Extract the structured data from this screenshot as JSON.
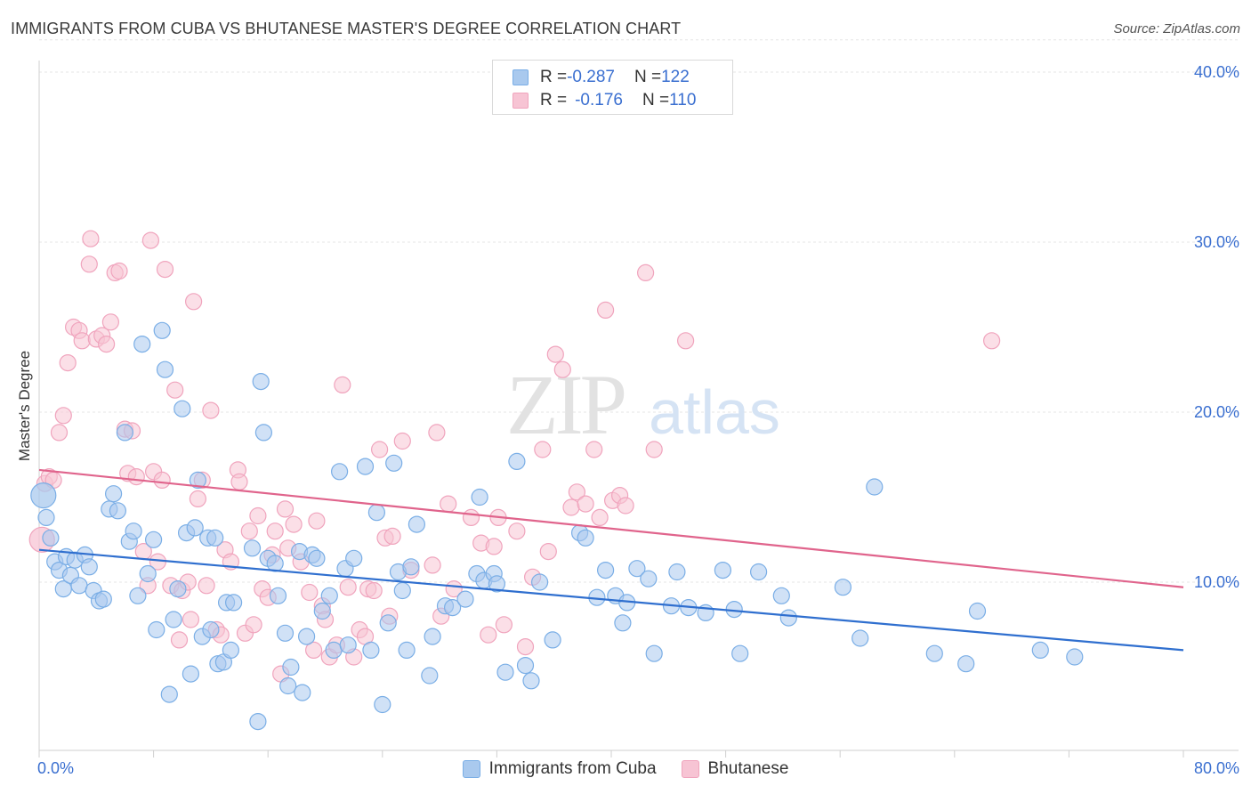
{
  "title": "IMMIGRANTS FROM CUBA VS BHUTANESE MASTER'S DEGREE CORRELATION CHART",
  "source": "Source: ZipAtlas.com",
  "watermark": {
    "zip": "ZIP",
    "atlas": "atlas"
  },
  "legend_stats": [
    {
      "r_label": "R = ",
      "r_value": "-0.287",
      "n_label": "N = ",
      "n_value": "122"
    },
    {
      "r_label": "R = ",
      "r_value": "-0.176",
      "n_label": "N = ",
      "n_value": "110"
    }
  ],
  "chart_data": {
    "type": "scatter",
    "title": "IMMIGRANTS FROM CUBA VS BHUTANESE MASTER'S DEGREE CORRELATION CHART",
    "xlabel": "",
    "ylabel": "Master's Degree",
    "xlim": [
      0,
      80
    ],
    "ylim": [
      0,
      42
    ],
    "x_tick_labels": [
      "0.0%",
      "80.0%"
    ],
    "y_ticks": [
      10,
      20,
      30,
      40
    ],
    "y_tick_labels": [
      "10.0%",
      "20.0%",
      "30.0%",
      "40.0%"
    ],
    "grid": true,
    "legend_position": "bottom",
    "series": [
      {
        "name": "Immigrants from Cuba",
        "color": "#7aaee6",
        "fill": "#a9c9ee",
        "line_color": "#2f6fcf",
        "trend": {
          "x": [
            0,
            80
          ],
          "y": [
            11.9,
            6.0
          ]
        },
        "points": [
          [
            0.3,
            15.1
          ],
          [
            0.5,
            13.8
          ],
          [
            0.8,
            12.6
          ],
          [
            1.1,
            11.2
          ],
          [
            1.4,
            10.7
          ],
          [
            1.7,
            9.6
          ],
          [
            1.9,
            11.5
          ],
          [
            2.2,
            10.4
          ],
          [
            2.5,
            11.3
          ],
          [
            2.8,
            9.8
          ],
          [
            3.2,
            11.6
          ],
          [
            3.5,
            10.9
          ],
          [
            3.8,
            9.5
          ],
          [
            4.2,
            8.9
          ],
          [
            4.5,
            9.0
          ],
          [
            4.9,
            14.3
          ],
          [
            5.2,
            15.2
          ],
          [
            5.5,
            14.2
          ],
          [
            6.0,
            18.8
          ],
          [
            6.3,
            12.4
          ],
          [
            6.6,
            13.0
          ],
          [
            6.9,
            9.2
          ],
          [
            7.2,
            24.0
          ],
          [
            7.6,
            10.5
          ],
          [
            8.0,
            12.5
          ],
          [
            8.2,
            7.2
          ],
          [
            8.6,
            24.8
          ],
          [
            8.8,
            22.5
          ],
          [
            9.1,
            3.4
          ],
          [
            9.4,
            7.8
          ],
          [
            9.7,
            9.6
          ],
          [
            10.0,
            20.2
          ],
          [
            10.3,
            12.9
          ],
          [
            10.6,
            4.6
          ],
          [
            10.9,
            13.2
          ],
          [
            11.1,
            16.0
          ],
          [
            11.4,
            6.8
          ],
          [
            11.8,
            12.6
          ],
          [
            12.0,
            7.2
          ],
          [
            12.3,
            12.6
          ],
          [
            12.5,
            5.2
          ],
          [
            12.9,
            5.3
          ],
          [
            13.1,
            8.8
          ],
          [
            13.4,
            6.0
          ],
          [
            13.6,
            8.8
          ],
          [
            14.9,
            12.0
          ],
          [
            15.3,
            1.8
          ],
          [
            15.5,
            21.8
          ],
          [
            15.7,
            18.8
          ],
          [
            16.0,
            11.4
          ],
          [
            16.5,
            11.1
          ],
          [
            16.7,
            9.2
          ],
          [
            17.2,
            7.0
          ],
          [
            17.4,
            3.9
          ],
          [
            17.6,
            5.0
          ],
          [
            18.2,
            11.8
          ],
          [
            18.4,
            3.5
          ],
          [
            18.7,
            6.8
          ],
          [
            19.1,
            11.6
          ],
          [
            19.4,
            11.4
          ],
          [
            19.8,
            8.3
          ],
          [
            20.3,
            9.2
          ],
          [
            20.6,
            6.0
          ],
          [
            21.0,
            16.5
          ],
          [
            21.4,
            10.8
          ],
          [
            21.6,
            6.3
          ],
          [
            22.0,
            11.4
          ],
          [
            22.8,
            16.8
          ],
          [
            23.2,
            6.0
          ],
          [
            23.6,
            14.1
          ],
          [
            24.0,
            2.8
          ],
          [
            24.4,
            7.6
          ],
          [
            24.8,
            17.0
          ],
          [
            25.1,
            10.6
          ],
          [
            25.4,
            9.5
          ],
          [
            25.7,
            6.0
          ],
          [
            26.0,
            10.9
          ],
          [
            26.4,
            13.4
          ],
          [
            27.3,
            4.5
          ],
          [
            27.5,
            6.8
          ],
          [
            28.4,
            8.6
          ],
          [
            28.9,
            8.5
          ],
          [
            29.8,
            9.0
          ],
          [
            30.6,
            10.5
          ],
          [
            30.8,
            15.0
          ],
          [
            31.1,
            10.1
          ],
          [
            31.8,
            10.5
          ],
          [
            32.0,
            9.9
          ],
          [
            32.6,
            4.7
          ],
          [
            33.4,
            17.1
          ],
          [
            34.0,
            5.1
          ],
          [
            34.4,
            4.2
          ],
          [
            35.0,
            10.0
          ],
          [
            35.9,
            6.6
          ],
          [
            37.8,
            12.9
          ],
          [
            38.2,
            12.6
          ],
          [
            39.0,
            9.1
          ],
          [
            39.6,
            10.7
          ],
          [
            40.3,
            9.2
          ],
          [
            40.8,
            7.6
          ],
          [
            41.1,
            8.8
          ],
          [
            41.8,
            10.8
          ],
          [
            42.6,
            10.2
          ],
          [
            43.0,
            5.8
          ],
          [
            44.2,
            8.6
          ],
          [
            44.6,
            10.6
          ],
          [
            45.4,
            8.5
          ],
          [
            46.6,
            8.2
          ],
          [
            47.8,
            10.7
          ],
          [
            48.6,
            8.4
          ],
          [
            49.0,
            5.8
          ],
          [
            50.3,
            10.6
          ],
          [
            51.9,
            9.2
          ],
          [
            52.4,
            7.9
          ],
          [
            56.2,
            9.7
          ],
          [
            57.4,
            6.7
          ],
          [
            58.4,
            15.6
          ],
          [
            62.6,
            5.8
          ],
          [
            64.8,
            5.2
          ],
          [
            65.6,
            8.3
          ],
          [
            70.0,
            6.0
          ],
          [
            72.4,
            5.6
          ]
        ]
      },
      {
        "name": "Bhutanese",
        "color": "#f0a4bd",
        "fill": "#f7c4d4",
        "line_color": "#e0648c",
        "trend": {
          "x": [
            0,
            80
          ],
          "y": [
            16.6,
            9.7
          ]
        },
        "points": [
          [
            0.2,
            12.5
          ],
          [
            0.4,
            15.8
          ],
          [
            0.7,
            16.2
          ],
          [
            1.0,
            16.0
          ],
          [
            1.4,
            18.8
          ],
          [
            1.7,
            19.8
          ],
          [
            2.0,
            22.9
          ],
          [
            2.4,
            25.0
          ],
          [
            2.8,
            24.8
          ],
          [
            3.0,
            24.2
          ],
          [
            3.5,
            28.7
          ],
          [
            3.6,
            30.2
          ],
          [
            4.0,
            24.3
          ],
          [
            4.4,
            24.5
          ],
          [
            4.7,
            24.0
          ],
          [
            5.0,
            25.3
          ],
          [
            5.3,
            28.2
          ],
          [
            5.6,
            28.3
          ],
          [
            6.0,
            19.0
          ],
          [
            6.2,
            16.4
          ],
          [
            6.5,
            18.9
          ],
          [
            6.8,
            16.2
          ],
          [
            7.3,
            11.8
          ],
          [
            7.6,
            9.8
          ],
          [
            7.8,
            30.1
          ],
          [
            8.0,
            16.5
          ],
          [
            8.3,
            11.2
          ],
          [
            8.6,
            16.0
          ],
          [
            8.8,
            28.4
          ],
          [
            9.2,
            9.8
          ],
          [
            9.5,
            21.3
          ],
          [
            9.8,
            6.6
          ],
          [
            10.0,
            9.5
          ],
          [
            10.4,
            10.0
          ],
          [
            10.6,
            7.8
          ],
          [
            10.8,
            26.5
          ],
          [
            11.1,
            14.9
          ],
          [
            11.4,
            16.0
          ],
          [
            11.7,
            9.8
          ],
          [
            12.0,
            20.1
          ],
          [
            12.4,
            7.2
          ],
          [
            12.7,
            6.9
          ],
          [
            13.0,
            11.9
          ],
          [
            13.4,
            11.2
          ],
          [
            13.9,
            16.6
          ],
          [
            14.0,
            15.9
          ],
          [
            14.4,
            7.0
          ],
          [
            14.7,
            13.0
          ],
          [
            15.0,
            7.5
          ],
          [
            15.3,
            13.9
          ],
          [
            15.6,
            9.6
          ],
          [
            16.0,
            9.1
          ],
          [
            16.3,
            11.6
          ],
          [
            16.5,
            13.0
          ],
          [
            16.9,
            4.6
          ],
          [
            17.2,
            14.3
          ],
          [
            17.4,
            12.0
          ],
          [
            17.8,
            13.4
          ],
          [
            18.3,
            11.2
          ],
          [
            18.9,
            9.4
          ],
          [
            19.2,
            6.0
          ],
          [
            19.4,
            13.6
          ],
          [
            19.8,
            8.6
          ],
          [
            20.0,
            7.8
          ],
          [
            20.3,
            5.6
          ],
          [
            20.8,
            6.3
          ],
          [
            21.2,
            21.6
          ],
          [
            21.6,
            9.7
          ],
          [
            22.0,
            5.6
          ],
          [
            22.4,
            7.2
          ],
          [
            22.8,
            6.8
          ],
          [
            23.0,
            9.6
          ],
          [
            23.4,
            9.5
          ],
          [
            23.8,
            17.8
          ],
          [
            24.2,
            12.6
          ],
          [
            24.5,
            8.0
          ],
          [
            24.7,
            12.7
          ],
          [
            25.4,
            18.3
          ],
          [
            26.0,
            10.7
          ],
          [
            27.5,
            11.0
          ],
          [
            27.8,
            18.8
          ],
          [
            28.1,
            8.0
          ],
          [
            28.6,
            14.6
          ],
          [
            29.0,
            9.6
          ],
          [
            30.2,
            13.8
          ],
          [
            30.9,
            12.3
          ],
          [
            31.4,
            6.9
          ],
          [
            31.8,
            12.1
          ],
          [
            32.1,
            13.8
          ],
          [
            32.5,
            7.5
          ],
          [
            33.4,
            13.0
          ],
          [
            34.0,
            6.2
          ],
          [
            34.5,
            10.3
          ],
          [
            35.2,
            17.8
          ],
          [
            35.6,
            11.8
          ],
          [
            36.1,
            23.4
          ],
          [
            36.6,
            22.5
          ],
          [
            37.2,
            14.4
          ],
          [
            37.6,
            15.3
          ],
          [
            38.2,
            14.6
          ],
          [
            38.8,
            17.8
          ],
          [
            39.2,
            13.8
          ],
          [
            39.6,
            26.0
          ],
          [
            40.1,
            14.8
          ],
          [
            40.6,
            15.1
          ],
          [
            41.0,
            14.5
          ],
          [
            42.4,
            28.2
          ],
          [
            43.0,
            17.8
          ],
          [
            45.2,
            24.2
          ],
          [
            66.6,
            24.2
          ]
        ]
      }
    ]
  }
}
